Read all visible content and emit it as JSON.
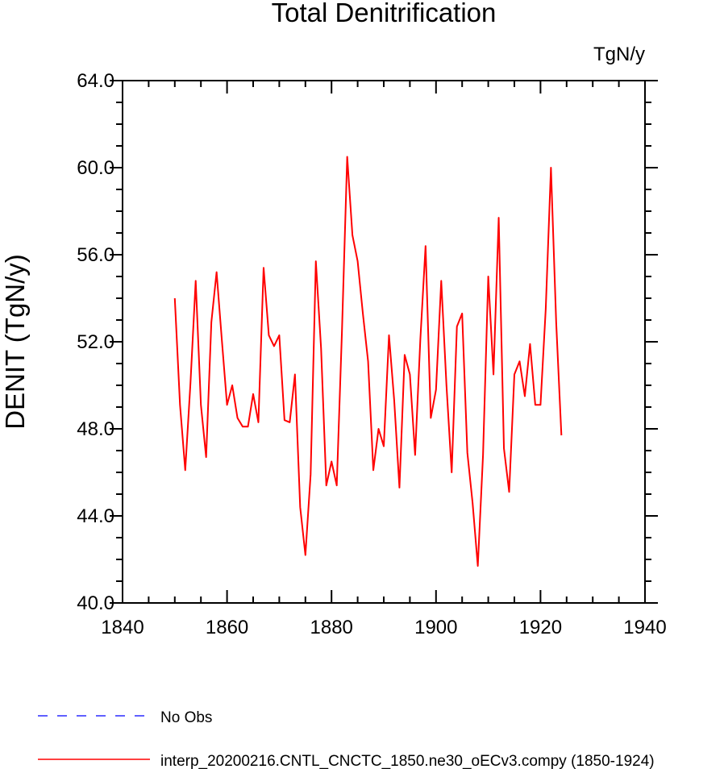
{
  "chart_data": {
    "type": "line",
    "title": "Total Denitrification",
    "units_label": "TgN/y",
    "ylabel": "DENIT  (TgN/y)",
    "xlabel": "",
    "xlim": [
      1840,
      1940
    ],
    "ylim": [
      40.0,
      64.0
    ],
    "x_ticks": [
      1840,
      1860,
      1880,
      1900,
      1920,
      1940
    ],
    "x_tick_labels": [
      "1840",
      "1860",
      "1880",
      "1900",
      "1920",
      "1940"
    ],
    "y_ticks": [
      40,
      44,
      48,
      52,
      56,
      60,
      64
    ],
    "y_tick_labels": [
      "40.0",
      "44.0",
      "48.0",
      "52.0",
      "56.0",
      "60.0",
      "64.0"
    ],
    "grid": false,
    "legend_placement": "bottom-left",
    "legend": [
      {
        "label": "No Obs",
        "color": "#0000ff",
        "style": "dashed"
      },
      {
        "label": "interp_20200216.CNTL_CNCTC_1850.ne30_oECv3.compy (1850-1924)",
        "color": "#ff0000",
        "style": "solid"
      }
    ],
    "series": [
      {
        "color": "#ff0000",
        "x": [
          1850,
          1851,
          1852,
          1853,
          1854,
          1855,
          1856,
          1857,
          1858,
          1859,
          1860,
          1861,
          1862,
          1863,
          1864,
          1865,
          1866,
          1867,
          1868,
          1869,
          1870,
          1871,
          1872,
          1873,
          1874,
          1875,
          1876,
          1877,
          1878,
          1879,
          1880,
          1881,
          1882,
          1883,
          1884,
          1885,
          1886,
          1887,
          1888,
          1889,
          1890,
          1891,
          1892,
          1893,
          1894,
          1895,
          1896,
          1897,
          1898,
          1899,
          1900,
          1901,
          1902,
          1903,
          1904,
          1905,
          1906,
          1907,
          1908,
          1909,
          1910,
          1911,
          1912,
          1913,
          1914,
          1915,
          1916,
          1917,
          1918,
          1919,
          1920,
          1921,
          1922,
          1923,
          1924
        ],
        "values": [
          54.0,
          49.1,
          46.1,
          50.1,
          54.8,
          49.1,
          46.7,
          52.9,
          55.2,
          52.1,
          49.1,
          50.0,
          48.5,
          48.1,
          48.1,
          49.6,
          48.3,
          55.4,
          52.3,
          51.8,
          52.3,
          48.4,
          48.3,
          50.5,
          44.4,
          42.2,
          45.9,
          55.7,
          51.7,
          45.4,
          46.5,
          45.4,
          52.5,
          60.5,
          56.9,
          55.7,
          53.3,
          51.1,
          46.1,
          48.0,
          47.2,
          52.3,
          49.3,
          45.3,
          51.4,
          50.5,
          46.8,
          52.1,
          56.4,
          48.5,
          49.8,
          54.8,
          50.0,
          46.0,
          52.7,
          53.3,
          46.9,
          44.6,
          41.7,
          46.8,
          55.0,
          50.5,
          57.7,
          47.1,
          45.1,
          50.5,
          51.1,
          49.5,
          51.9,
          49.1,
          49.1,
          53.5,
          60.0,
          52.9,
          47.7
        ]
      }
    ]
  }
}
